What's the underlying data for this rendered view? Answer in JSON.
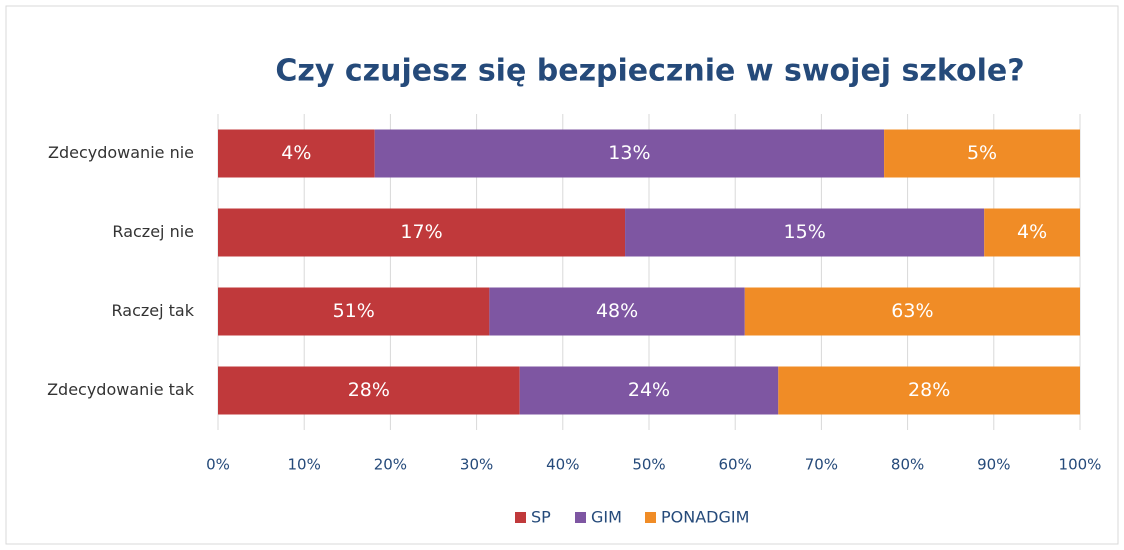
{
  "chart_data": {
    "type": "bar",
    "orientation": "horizontal",
    "stacked": "percent",
    "title": "Czy czujesz się bezpiecznie w swojej szkole?",
    "categories": [
      "Zdecydowanie nie",
      "Raczej nie",
      "Raczej tak",
      "Zdecydowanie tak"
    ],
    "series": [
      {
        "name": "SP",
        "color": "#c0393b",
        "values": [
          4,
          17,
          51,
          28
        ],
        "value_labels": [
          "4%",
          "17%",
          "51%",
          "28%"
        ]
      },
      {
        "name": "GIM",
        "color": "#7e56a2",
        "values": [
          13,
          15,
          48,
          24
        ],
        "value_labels": [
          "13%",
          "15%",
          "48%",
          "24%"
        ]
      },
      {
        "name": "PONADGIM",
        "color": "#f08c26",
        "values": [
          5,
          4,
          63,
          28
        ],
        "value_labels": [
          "5%",
          "4%",
          "63%",
          "28%"
        ]
      }
    ],
    "xlim": [
      0,
      100
    ],
    "xticks": [
      {
        "value": 0,
        "label": "0%"
      },
      {
        "value": 10,
        "label": "10%"
      },
      {
        "value": 20,
        "label": "20%"
      },
      {
        "value": 30,
        "label": "30%"
      },
      {
        "value": 40,
        "label": "40%"
      },
      {
        "value": 50,
        "label": "50%"
      },
      {
        "value": 60,
        "label": "60%"
      },
      {
        "value": 70,
        "label": "70%"
      },
      {
        "value": 80,
        "label": "80%"
      },
      {
        "value": 90,
        "label": "90%"
      },
      {
        "value": 100,
        "label": "100%"
      }
    ],
    "grid": true,
    "legend": "bottom"
  }
}
